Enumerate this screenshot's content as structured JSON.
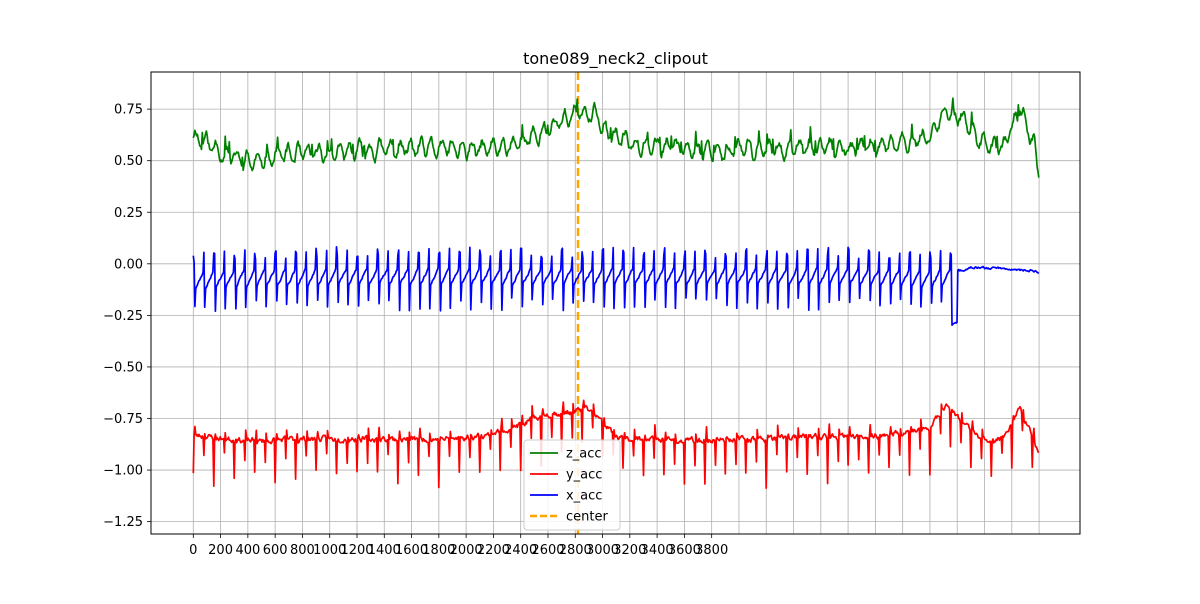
{
  "chart_data": {
    "type": "line",
    "title": "tone089_neck2_clipout",
    "xlabel": "",
    "ylabel": "",
    "xlim": [
      -310,
      6500
    ],
    "ylim": [
      -1.31,
      0.93
    ],
    "grid": true,
    "legend_position": "lower center",
    "x_ticks": [
      0,
      200,
      400,
      600,
      800,
      1000,
      1200,
      1400,
      1600,
      1800,
      2000,
      2200,
      2400,
      2600,
      2800,
      3000,
      3200,
      3400,
      3600,
      3800
    ],
    "x_tick_labels": [
      "0",
      "200",
      "400",
      "600",
      "800",
      "1000",
      "1200",
      "1400",
      "1600",
      "1800",
      "2000",
      "2200",
      "2400",
      "2600",
      "2800",
      "3000",
      "3200",
      "3400",
      "3600",
      "3800"
    ],
    "extra_vgrid_x": [
      4000,
      4200,
      4400,
      4600,
      4800,
      5000,
      5200,
      5400,
      5600,
      5800,
      6000,
      6200
    ],
    "y_ticks": [
      0.75,
      0.5,
      0.25,
      0.0,
      -0.25,
      -0.5,
      -0.75,
      -1.0,
      -1.25
    ],
    "y_tick_labels": [
      "0.75",
      "0.50",
      "0.25",
      "0.00",
      "−0.25",
      "−0.50",
      "−0.75",
      "−1.00",
      "−1.25"
    ],
    "x_range": [
      0,
      6200
    ],
    "center_x": 2820,
    "center_label": "center",
    "series": [
      {
        "name": "z_acc",
        "color": "#008000",
        "x": [
          0,
          120,
          240,
          360,
          480,
          600,
          840,
          1080,
          1320,
          1560,
          1800,
          2040,
          2280,
          2520,
          2700,
          2820,
          2940,
          3060,
          3300,
          3600,
          3900,
          4200,
          4500,
          4800,
          5100,
          5400,
          5520,
          5640,
          5820,
          5940,
          6060,
          6160,
          6200
        ],
        "values": [
          0.62,
          0.58,
          0.53,
          0.5,
          0.49,
          0.53,
          0.53,
          0.54,
          0.55,
          0.56,
          0.56,
          0.55,
          0.57,
          0.62,
          0.7,
          0.73,
          0.72,
          0.62,
          0.58,
          0.56,
          0.55,
          0.56,
          0.56,
          0.56,
          0.57,
          0.62,
          0.75,
          0.7,
          0.56,
          0.57,
          0.76,
          0.58,
          0.42
        ],
        "amplitude": 0.045,
        "cycle": 75,
        "seed": 11
      },
      {
        "name": "y_acc",
        "color": "#ff0000",
        "x": [
          0,
          240,
          480,
          720,
          960,
          1200,
          1440,
          1680,
          1920,
          2160,
          2400,
          2580,
          2760,
          2880,
          2940,
          3120,
          3360,
          3600,
          3900,
          4200,
          4500,
          4800,
          5100,
          5400,
          5520,
          5640,
          5820,
          5940,
          6060,
          6160,
          6200
        ],
        "values": [
          -0.83,
          -0.85,
          -0.86,
          -0.85,
          -0.85,
          -0.85,
          -0.85,
          -0.85,
          -0.85,
          -0.83,
          -0.78,
          -0.73,
          -0.72,
          -0.7,
          -0.73,
          -0.85,
          -0.85,
          -0.86,
          -0.85,
          -0.85,
          -0.84,
          -0.84,
          -0.83,
          -0.8,
          -0.68,
          -0.77,
          -0.87,
          -0.84,
          -0.7,
          -0.85,
          -0.93
        ],
        "amplitude": 0.028,
        "cycle": 75,
        "spike_depth": -0.24,
        "seed": 23
      },
      {
        "name": "x_acc",
        "color": "#0000ff",
        "x": [
          0,
          300,
          1200,
          2400,
          3600,
          4800,
          5500,
          5580,
          5700,
          5900,
          6100,
          6200
        ],
        "values": [
          -0.06,
          -0.05,
          -0.04,
          -0.04,
          -0.04,
          -0.04,
          -0.05,
          -0.04,
          -0.02,
          -0.02,
          -0.03,
          -0.04
        ],
        "amplitude": 0.012,
        "cycle": 75,
        "wave_amp": 0.1,
        "wave_end_x": 5560,
        "seed": 37
      }
    ],
    "legend": [
      {
        "label": "z_acc",
        "color": "#008000",
        "style": "solid"
      },
      {
        "label": "y_acc",
        "color": "#ff0000",
        "style": "solid"
      },
      {
        "label": "x_acc",
        "color": "#0000ff",
        "style": "solid"
      },
      {
        "label": "center",
        "color": "#ffa500",
        "style": "dashed"
      }
    ]
  }
}
